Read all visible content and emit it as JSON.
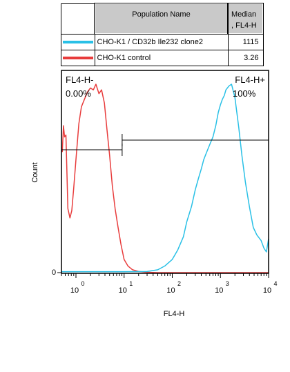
{
  "legend": {
    "header_name": "Population Name",
    "header_median_line1": "Median",
    "header_median_line2": ", FL4-H",
    "rows": [
      {
        "name": "CHO-K1 / CD32b Ile232 clone2",
        "median": "1115",
        "color": "#29c0e6"
      },
      {
        "name": "CHO-K1 control",
        "median": "3.26",
        "color": "#e83c3c"
      }
    ]
  },
  "chart_data": {
    "type": "line",
    "xlabel": "FL4-H",
    "ylabel": "Count",
    "xscale": "log",
    "xlim": [
      0.5,
      10000
    ],
    "x_ticks": [
      {
        "value": 1,
        "base": "10",
        "exp": "0"
      },
      {
        "value": 10,
        "base": "10",
        "exp": "1"
      },
      {
        "value": 100,
        "base": "10",
        "exp": "2"
      },
      {
        "value": 1000,
        "base": "10",
        "exp": "3"
      },
      {
        "value": 10000,
        "base": "10",
        "exp": "4"
      }
    ],
    "y_tick_label": "0",
    "gates": [
      {
        "name": "FL4-H-",
        "percent": "0.00%",
        "range": [
          0.5,
          9.1
        ],
        "level": 0.55
      },
      {
        "name": "FL4-H+",
        "percent": "100%",
        "range": [
          9.1,
          10000
        ],
        "level": 0.6
      }
    ],
    "series": [
      {
        "name": "CHO-K1 control",
        "color": "#e83c3c",
        "x": [
          0.52,
          0.55,
          0.58,
          0.62,
          0.68,
          0.75,
          0.82,
          0.9,
          1.0,
          1.15,
          1.3,
          1.5,
          1.75,
          2.0,
          2.3,
          2.6,
          3.0,
          3.4,
          3.9,
          4.4,
          5.0,
          5.7,
          6.5,
          7.5,
          8.6,
          10,
          12,
          15,
          20,
          30,
          50,
          100,
          1000,
          10000
        ],
        "y": [
          0.64,
          0.78,
          0.72,
          0.73,
          0.34,
          0.29,
          0.33,
          0.45,
          0.6,
          0.79,
          0.88,
          0.92,
          0.96,
          0.98,
          0.97,
          1.0,
          0.95,
          0.97,
          0.9,
          0.76,
          0.62,
          0.46,
          0.34,
          0.24,
          0.15,
          0.07,
          0.035,
          0.015,
          0.006,
          0.002,
          0.0,
          0.0,
          0.0,
          0.0
        ]
      },
      {
        "name": "CHO-K1 / CD32b Ile232 clone2",
        "color": "#29c0e6",
        "x": [
          0.5,
          10,
          30,
          50,
          70,
          100,
          130,
          170,
          200,
          250,
          300,
          350,
          400,
          450,
          500,
          600,
          700,
          800,
          900,
          1000,
          1100,
          1200,
          1300,
          1500,
          1700,
          2000,
          2400,
          2800,
          3300,
          4000,
          4800,
          5700,
          7000,
          8000,
          9000,
          10000
        ],
        "y": [
          0.005,
          0.005,
          0.006,
          0.015,
          0.035,
          0.07,
          0.12,
          0.19,
          0.27,
          0.35,
          0.44,
          0.5,
          0.55,
          0.6,
          0.63,
          0.68,
          0.72,
          0.78,
          0.85,
          0.89,
          0.92,
          0.94,
          0.97,
          0.99,
          1.0,
          0.93,
          0.77,
          0.62,
          0.48,
          0.35,
          0.24,
          0.2,
          0.17,
          0.13,
          0.11,
          0.18
        ]
      }
    ]
  }
}
